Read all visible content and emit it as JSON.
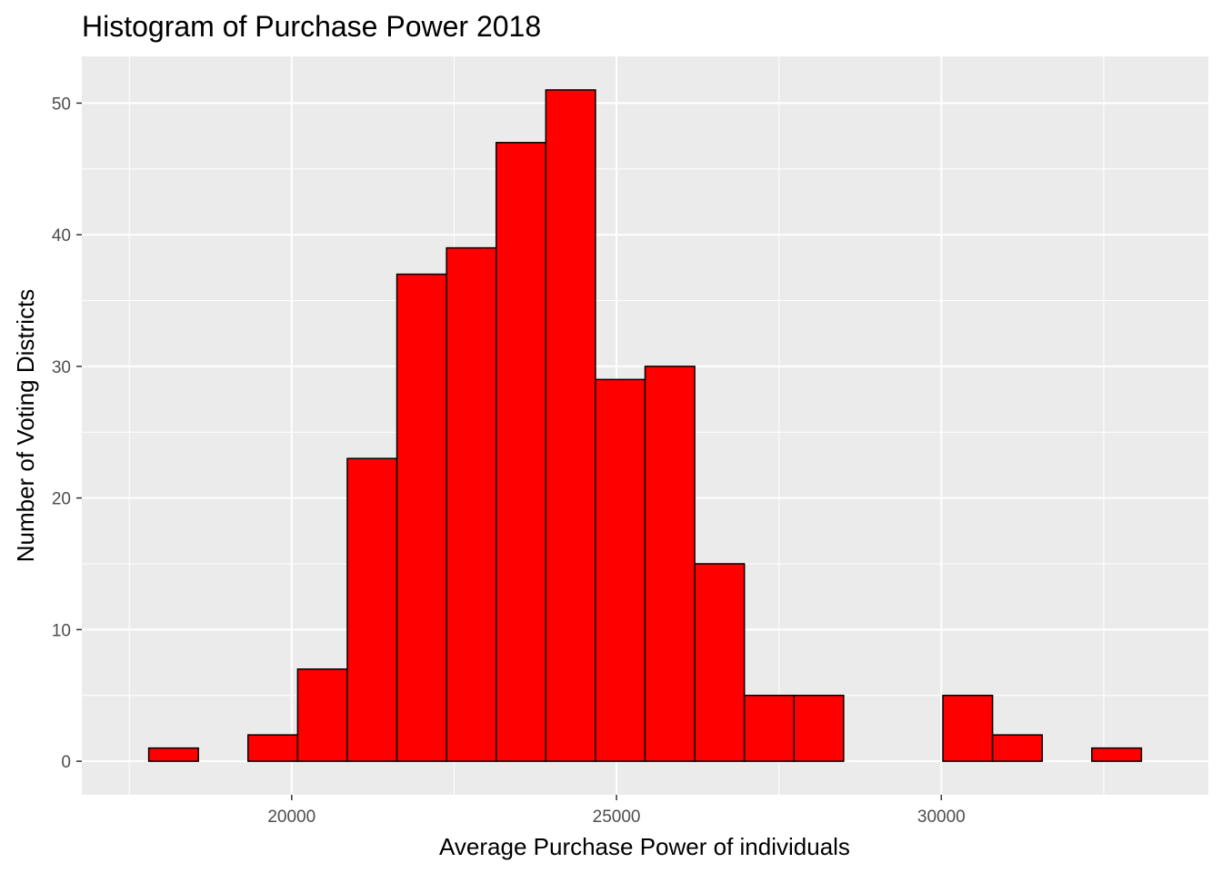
{
  "chart_data": {
    "type": "bar",
    "title": "Histogram of Purchase Power 2018",
    "xlabel": "Average Purchase Power of individuals",
    "ylabel": "Number of Voting Districts",
    "bins": [
      {
        "x0": 17800,
        "x1": 18564,
        "count": 1
      },
      {
        "x0": 18564,
        "x1": 19328,
        "count": 0
      },
      {
        "x0": 19328,
        "x1": 20092,
        "count": 2
      },
      {
        "x0": 20092,
        "x1": 20856,
        "count": 7
      },
      {
        "x0": 20856,
        "x1": 21620,
        "count": 23
      },
      {
        "x0": 21620,
        "x1": 22384,
        "count": 37
      },
      {
        "x0": 22384,
        "x1": 23148,
        "count": 39
      },
      {
        "x0": 23148,
        "x1": 23912,
        "count": 47
      },
      {
        "x0": 23912,
        "x1": 24676,
        "count": 51
      },
      {
        "x0": 24676,
        "x1": 25440,
        "count": 29
      },
      {
        "x0": 25440,
        "x1": 26204,
        "count": 30
      },
      {
        "x0": 26204,
        "x1": 26968,
        "count": 15
      },
      {
        "x0": 26968,
        "x1": 27732,
        "count": 5
      },
      {
        "x0": 27732,
        "x1": 28496,
        "count": 5
      },
      {
        "x0": 28496,
        "x1": 29260,
        "count": 0
      },
      {
        "x0": 29260,
        "x1": 30024,
        "count": 0
      },
      {
        "x0": 30024,
        "x1": 30788,
        "count": 5
      },
      {
        "x0": 30788,
        "x1": 31552,
        "count": 2
      },
      {
        "x0": 31552,
        "x1": 32316,
        "count": 0
      },
      {
        "x0": 32316,
        "x1": 33080,
        "count": 1
      }
    ],
    "xlim": [
      16770,
      34110
    ],
    "ylim": [
      -2.55,
      53.55
    ],
    "x_ticks": [
      {
        "value": 20000,
        "label": "20000"
      },
      {
        "value": 25000,
        "label": "25000"
      },
      {
        "value": 30000,
        "label": "30000"
      }
    ],
    "y_ticks": [
      {
        "value": 0,
        "label": "0"
      },
      {
        "value": 10,
        "label": "10"
      },
      {
        "value": 20,
        "label": "20"
      },
      {
        "value": 30,
        "label": "30"
      },
      {
        "value": 40,
        "label": "40"
      },
      {
        "value": 50,
        "label": "50"
      }
    ],
    "grid": true,
    "colors": {
      "bar_fill": "#ff0000",
      "bar_stroke": "#000000",
      "panel_background": "#ebebeb",
      "grid": "#ffffff"
    }
  }
}
